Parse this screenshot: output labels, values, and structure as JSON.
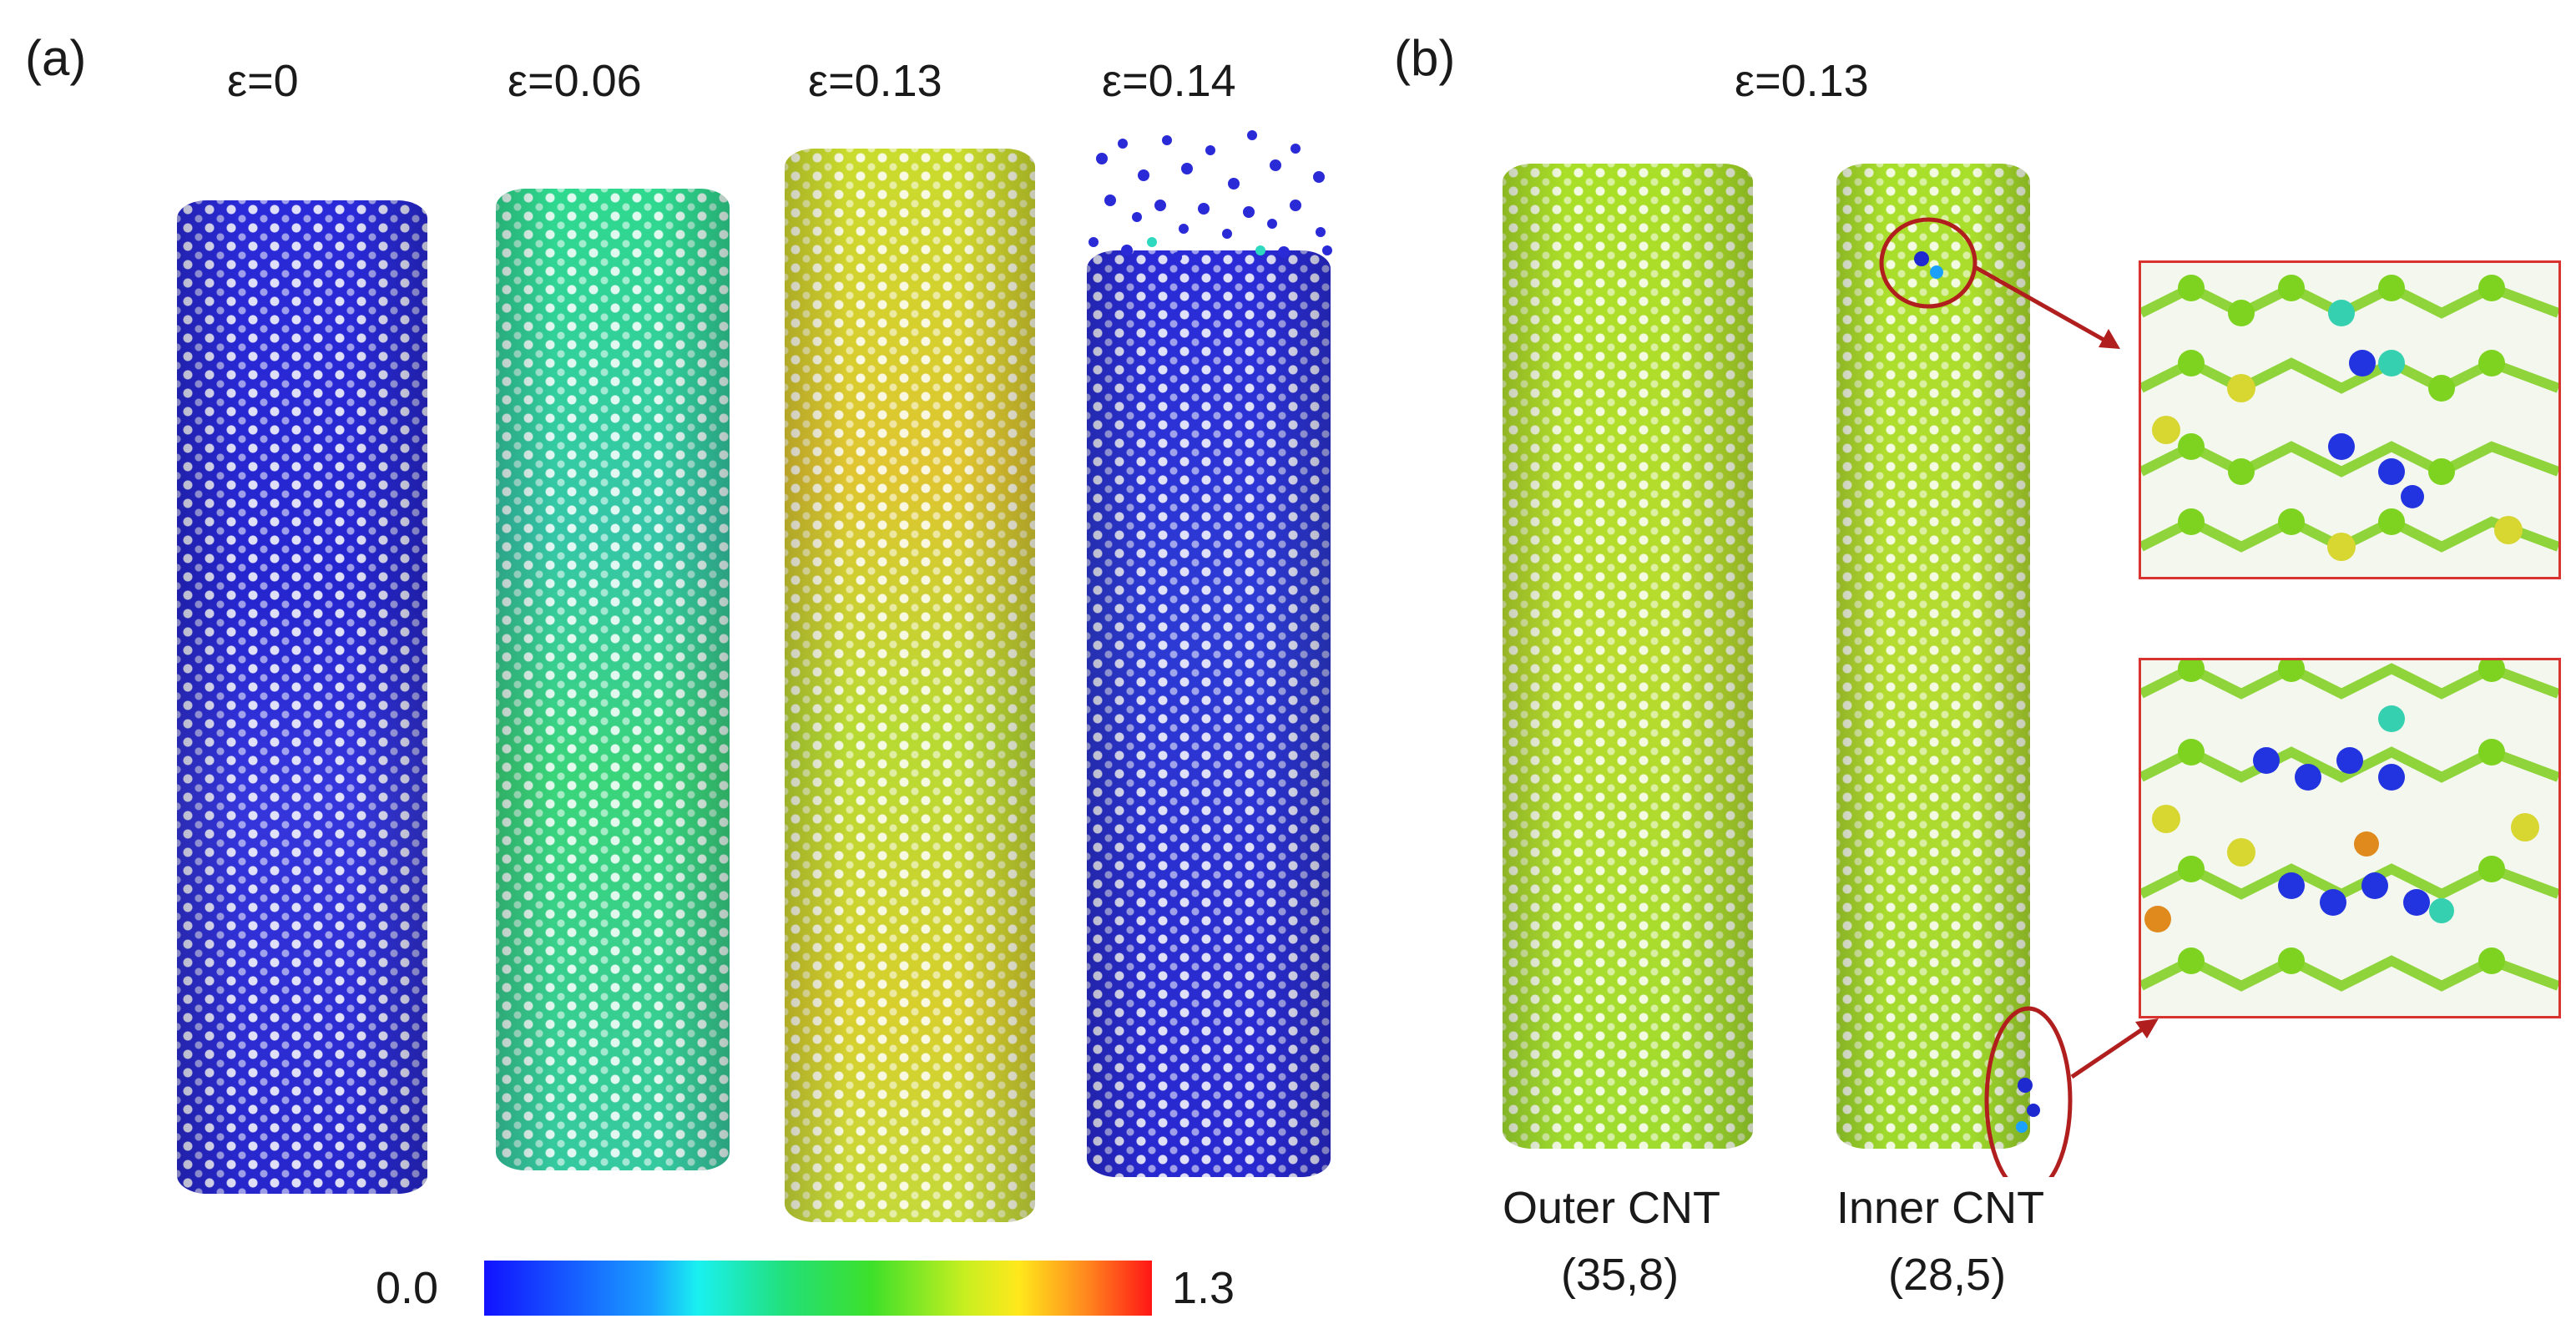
{
  "panel_a": {
    "label": "(a)",
    "strains": [
      "ε=0",
      "ε=0.06",
      "ε=0.13",
      "ε=0.14"
    ]
  },
  "panel_b": {
    "label": "(b)",
    "strain": "ε=0.13",
    "outer": {
      "name": "Outer CNT",
      "chirality": "(35,8)"
    },
    "inner": {
      "name": "Inner CNT",
      "chirality": "(28,5)"
    }
  },
  "colorbar": {
    "min": "0.0",
    "max": "1.3",
    "colors": [
      "#1212ff",
      "#1af0f0",
      "#3ee02a",
      "#ffe81c",
      "#ff1616"
    ]
  },
  "colors": {
    "highlight": "#b01e1e",
    "inset_border": "#d9332f"
  }
}
